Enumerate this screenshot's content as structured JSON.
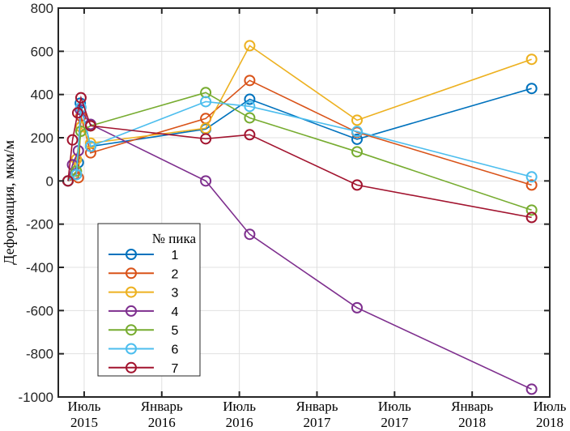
{
  "chart_data": {
    "type": "line",
    "title": "",
    "xlabel": "",
    "ylabel": "Деформация, мкм/м",
    "ylim": [
      -1000,
      800
    ],
    "xlim_months_from_2015_07": [
      -2,
      36
    ],
    "grid": true,
    "y_ticks": [
      -1000,
      -800,
      -600,
      -400,
      -200,
      0,
      200,
      400,
      600,
      800
    ],
    "y_tick_labels": [
      "-1000",
      "-800",
      "-600",
      "-400",
      "-200",
      "0",
      "200",
      "400",
      "600",
      "800"
    ],
    "x_ticks": [
      {
        "month": 0,
        "line1": "Июль",
        "line2": "2015"
      },
      {
        "month": 6,
        "line1": "Январь",
        "line2": "2016"
      },
      {
        "month": 12,
        "line1": "Июль",
        "line2": "2016"
      },
      {
        "month": 18,
        "line1": "Январь",
        "line2": "2017"
      },
      {
        "month": 24,
        "line1": "Июль",
        "line2": "2017"
      },
      {
        "month": 30,
        "line1": "Январь",
        "line2": "2018"
      },
      {
        "month": 36,
        "line1": "Июль",
        "line2": "2018"
      }
    ],
    "legend": {
      "title": "№ пика",
      "placement": "lower-left"
    },
    "series": [
      {
        "name": "1",
        "color": "#0072BD",
        "points": [
          [
            -1.25,
            0
          ],
          [
            -0.6,
            30
          ],
          [
            -0.45,
            85
          ],
          [
            -0.3,
            360
          ],
          [
            0.5,
            160
          ],
          [
            9.4,
            240
          ],
          [
            12.8,
            378
          ],
          [
            21.1,
            193
          ],
          [
            34.6,
            428
          ]
        ]
      },
      {
        "name": "2",
        "color": "#D95319",
        "points": [
          [
            -1.25,
            0
          ],
          [
            -0.45,
            15
          ],
          [
            -0.25,
            300
          ],
          [
            0.5,
            130
          ],
          [
            9.4,
            289
          ],
          [
            12.8,
            465
          ],
          [
            21.1,
            225
          ],
          [
            34.6,
            -19
          ]
        ]
      },
      {
        "name": "3",
        "color": "#EDB120",
        "points": [
          [
            -1.25,
            0
          ],
          [
            -0.6,
            100
          ],
          [
            -0.25,
            250
          ],
          [
            0.5,
            175
          ],
          [
            9.4,
            244
          ],
          [
            12.8,
            626
          ],
          [
            21.1,
            281
          ],
          [
            34.6,
            563
          ]
        ]
      },
      {
        "name": "4",
        "color": "#7E2F8E",
        "points": [
          [
            -1.25,
            0
          ],
          [
            -0.9,
            75
          ],
          [
            -0.45,
            140
          ],
          [
            -0.3,
            330
          ],
          [
            0.5,
            262
          ],
          [
            9.4,
            0
          ],
          [
            12.8,
            -247
          ],
          [
            21.1,
            -587
          ],
          [
            34.6,
            -964
          ]
        ]
      },
      {
        "name": "5",
        "color": "#77AC30",
        "points": [
          [
            -1.25,
            0
          ],
          [
            -0.6,
            45
          ],
          [
            -0.25,
            230
          ],
          [
            0.5,
            255
          ],
          [
            9.4,
            409
          ],
          [
            12.8,
            292
          ],
          [
            21.1,
            135
          ],
          [
            34.6,
            -135
          ]
        ]
      },
      {
        "name": "6",
        "color": "#4DBEEE",
        "points": [
          [
            -1.25,
            0
          ],
          [
            -0.6,
            30
          ],
          [
            -0.25,
            340
          ],
          [
            0.5,
            160
          ],
          [
            9.4,
            367
          ],
          [
            12.8,
            345
          ],
          [
            21.1,
            229
          ],
          [
            34.6,
            19
          ]
        ]
      },
      {
        "name": "7",
        "color": "#A2142F",
        "points": [
          [
            -1.25,
            0
          ],
          [
            -0.9,
            190
          ],
          [
            -0.5,
            315
          ],
          [
            -0.25,
            385
          ],
          [
            0.5,
            255
          ],
          [
            9.4,
            195
          ],
          [
            12.8,
            214
          ],
          [
            21.1,
            -19
          ],
          [
            34.6,
            -169
          ]
        ]
      }
    ]
  }
}
